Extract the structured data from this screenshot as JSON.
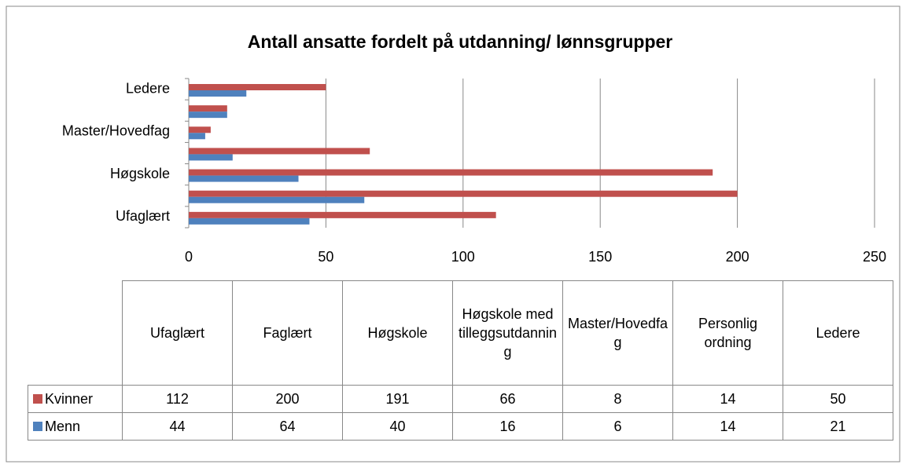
{
  "chart_data": {
    "type": "bar",
    "orientation": "horizontal",
    "title": "Antall ansatte fordelt på utdanning/ lønnsgrupper",
    "categories": [
      "Ufaglært",
      "Faglært",
      "Høgskole",
      "Høgskole med tilleggsutdanning",
      "Master/Hovedfag",
      "Personlig ordning",
      "Ledere"
    ],
    "series": [
      {
        "name": "Kvinner",
        "color": "#c0504d",
        "values": [
          112,
          200,
          191,
          66,
          8,
          14,
          50
        ]
      },
      {
        "name": "Menn",
        "color": "#4f81bd",
        "values": [
          44,
          64,
          40,
          16,
          6,
          14,
          21
        ]
      }
    ],
    "xlim": [
      0,
      250
    ],
    "xticks": [
      0,
      50,
      100,
      150,
      200,
      250
    ],
    "grid": true
  }
}
